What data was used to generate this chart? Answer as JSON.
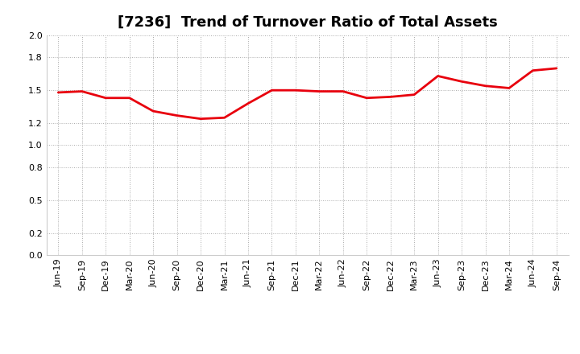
{
  "title": "[7236]  Trend of Turnover Ratio of Total Assets",
  "x_labels": [
    "Jun-19",
    "Sep-19",
    "Dec-19",
    "Mar-20",
    "Jun-20",
    "Sep-20",
    "Dec-20",
    "Mar-21",
    "Jun-21",
    "Sep-21",
    "Dec-21",
    "Mar-22",
    "Jun-22",
    "Sep-22",
    "Dec-22",
    "Mar-23",
    "Jun-23",
    "Sep-23",
    "Dec-23",
    "Mar-24",
    "Jun-24",
    "Sep-24"
  ],
  "y_values": [
    1.48,
    1.49,
    1.43,
    1.43,
    1.31,
    1.27,
    1.24,
    1.25,
    1.38,
    1.5,
    1.5,
    1.49,
    1.49,
    1.43,
    1.44,
    1.46,
    1.63,
    1.58,
    1.54,
    1.52,
    1.68,
    1.7
  ],
  "ylim": [
    0.0,
    2.0
  ],
  "yticks": [
    0.0,
    0.2,
    0.5,
    0.8,
    1.0,
    1.2,
    1.5,
    1.8,
    2.0
  ],
  "line_color": "#e8000d",
  "line_width": 2.0,
  "bg_color": "#ffffff",
  "plot_bg_color": "#ffffff",
  "grid_color": "#aaaaaa",
  "title_fontsize": 13,
  "tick_fontsize": 8.0
}
